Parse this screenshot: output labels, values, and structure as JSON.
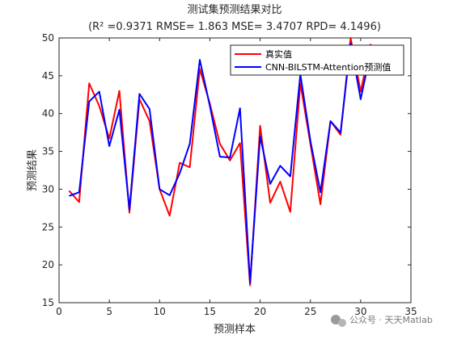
{
  "chart_data": {
    "type": "line",
    "title": "测试集预测结果对比",
    "subtitle": "(R² =0.9371 RMSE= 1.863 MSE= 3.4707 RPD= 4.1496)",
    "xlabel": "预测样本",
    "ylabel": "预测结果",
    "xlim": [
      0,
      35
    ],
    "ylim": [
      15,
      50
    ],
    "xticks": [
      0,
      5,
      10,
      15,
      20,
      25,
      30,
      35
    ],
    "yticks": [
      15,
      20,
      25,
      30,
      35,
      40,
      45,
      50
    ],
    "grid": false,
    "legend_position": "top-right",
    "x": [
      1,
      2,
      3,
      4,
      5,
      6,
      7,
      8,
      9,
      10,
      11,
      12,
      13,
      14,
      15,
      16,
      17,
      18,
      19,
      20,
      21,
      22,
      23,
      24,
      25,
      26,
      27,
      28,
      29,
      30,
      31
    ],
    "series": [
      {
        "name": "真实值",
        "color": "#ff0000",
        "values": [
          29.8,
          28.3,
          44.0,
          41.0,
          36.7,
          43.0,
          26.9,
          41.9,
          39.0,
          30.0,
          26.5,
          33.5,
          32.9,
          45.9,
          41.3,
          36.0,
          33.8,
          36.1,
          17.3,
          38.4,
          28.2,
          31.0,
          27.0,
          44.0,
          36.0,
          28.0,
          39.0,
          37.2,
          50.0,
          42.9,
          49.2
        ]
      },
      {
        "name": "CNN-BILSTM-Attention预测值",
        "color": "#0000ff",
        "values": [
          29.1,
          29.6,
          41.6,
          42.9,
          35.7,
          40.5,
          27.3,
          42.6,
          40.6,
          30.0,
          29.2,
          32.1,
          36.0,
          47.1,
          41.0,
          34.3,
          34.2,
          40.7,
          17.6,
          37.0,
          30.7,
          33.1,
          31.7,
          45.2,
          36.4,
          29.6,
          39.0,
          37.5,
          49.3,
          41.9,
          48.2
        ]
      }
    ]
  },
  "watermark": {
    "text": "公众号 · 天天Matlab",
    "icon": "wechat-icon"
  }
}
